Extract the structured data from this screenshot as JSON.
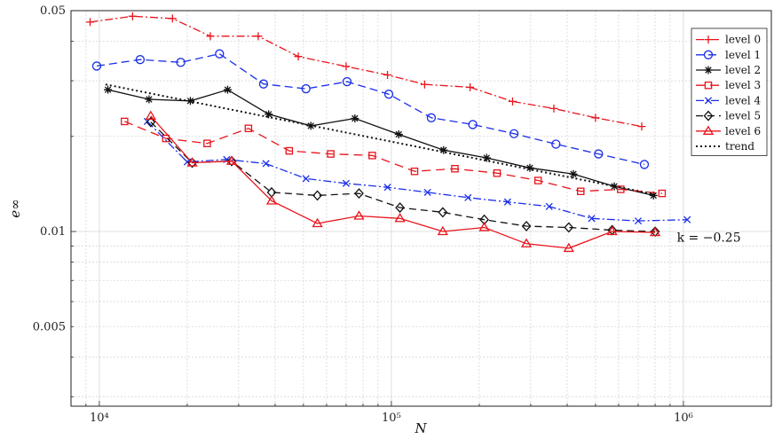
{
  "chart_data": {
    "type": "line",
    "xlabel": "N",
    "ylabel": "e∞",
    "xscale": "log",
    "yscale": "log",
    "xlim": [
      8000,
      2000000
    ],
    "ylim": [
      0.0028,
      0.05
    ],
    "x_ticks": [
      {
        "value": 10000,
        "label": "10⁴"
      },
      {
        "value": 100000,
        "label": "10⁵"
      },
      {
        "value": 1000000,
        "label": "10⁶"
      }
    ],
    "y_ticks": [
      {
        "value": 0.005,
        "label": "0.005"
      },
      {
        "value": 0.01,
        "label": "0.01"
      },
      {
        "value": 0.05,
        "label": "0.05"
      }
    ],
    "grid": true,
    "legend_position": "top-right",
    "annotation": {
      "text": "k = −0.25",
      "x": 950000,
      "y": 0.0096
    },
    "series": [
      {
        "name": "level 0",
        "color": "#e8141c",
        "dash": "9,3,2,3",
        "marker": "plus",
        "x": [
          9300,
          13000,
          17800,
          24000,
          35000,
          48000,
          70000,
          97000,
          130000,
          186000,
          260000,
          360000,
          500000,
          720000
        ],
        "y": [
          0.046,
          0.048,
          0.0472,
          0.0415,
          0.0415,
          0.0358,
          0.0333,
          0.0313,
          0.0292,
          0.0286,
          0.0258,
          0.0245,
          0.0229,
          0.0215
        ]
      },
      {
        "name": "level 1",
        "color": "#1a2ee8",
        "dash": "9,5",
        "marker": "circle",
        "x": [
          9800,
          13800,
          19000,
          25800,
          36500,
          51000,
          70500,
          98000,
          137000,
          190000,
          263000,
          366000,
          512000,
          735000
        ],
        "y": [
          0.0334,
          0.035,
          0.0343,
          0.0365,
          0.0293,
          0.0283,
          0.0298,
          0.0272,
          0.0229,
          0.0218,
          0.0204,
          0.0189,
          0.0176,
          0.0163
        ]
      },
      {
        "name": "level 2",
        "color": "#111111",
        "dash": "",
        "marker": "asterisk",
        "x": [
          10700,
          14800,
          20500,
          27500,
          38000,
          53000,
          75000,
          106000,
          151000,
          212000,
          298000,
          420000,
          580000,
          790000
        ],
        "y": [
          0.0281,
          0.0262,
          0.0259,
          0.0281,
          0.0235,
          0.0216,
          0.0228,
          0.0203,
          0.0181,
          0.0171,
          0.0159,
          0.0152,
          0.0139,
          0.013
        ]
      },
      {
        "name": "level 3",
        "color": "#e8141c",
        "dash": "10,6",
        "marker": "square",
        "x": [
          12200,
          16900,
          23400,
          32400,
          44700,
          62000,
          86000,
          120000,
          165000,
          230000,
          318000,
          445000,
          610000,
          845000
        ],
        "y": [
          0.0223,
          0.0197,
          0.019,
          0.0212,
          0.018,
          0.0176,
          0.0174,
          0.0155,
          0.0158,
          0.0153,
          0.0145,
          0.0134,
          0.0136,
          0.0132
        ]
      },
      {
        "name": "level 4",
        "color": "#1a2ee8",
        "dash": "9,3,2,3",
        "marker": "x",
        "x": [
          14600,
          20000,
          27300,
          37200,
          51000,
          70000,
          97000,
          133000,
          183000,
          250000,
          347000,
          485000,
          700000,
          1030000
        ],
        "y": [
          0.0223,
          0.0166,
          0.0169,
          0.0164,
          0.0147,
          0.0142,
          0.0138,
          0.0133,
          0.0128,
          0.0124,
          0.012,
          0.011,
          0.0108,
          0.0109
        ]
      },
      {
        "name": "level 5",
        "color": "#111111",
        "dash": "8,5",
        "marker": "diamond",
        "x": [
          15000,
          20800,
          28400,
          38900,
          55800,
          77500,
          107000,
          150000,
          208000,
          290000,
          405000,
          570000,
          800000
        ],
        "y": [
          0.0222,
          0.0165,
          0.0167,
          0.0133,
          0.013,
          0.0132,
          0.0119,
          0.0115,
          0.0109,
          0.0104,
          0.0103,
          0.0101,
          0.00999
        ]
      },
      {
        "name": "level 6",
        "color": "#e8141c",
        "dash": "",
        "marker": "triangle",
        "x": [
          15000,
          20800,
          28400,
          38900,
          55800,
          77500,
          107000,
          150000,
          208000,
          290000,
          405000,
          570000,
          800000
        ],
        "y": [
          0.0232,
          0.0165,
          0.0167,
          0.0125,
          0.0106,
          0.0112,
          0.011,
          0.01,
          0.0103,
          0.00915,
          0.00885,
          0.01,
          0.00993
        ]
      },
      {
        "name": "trend",
        "color": "#111111",
        "dash": "2,3",
        "marker": "none",
        "x": [
          10500,
          800000
        ],
        "y": [
          0.0292,
          0.0131
        ]
      }
    ]
  }
}
